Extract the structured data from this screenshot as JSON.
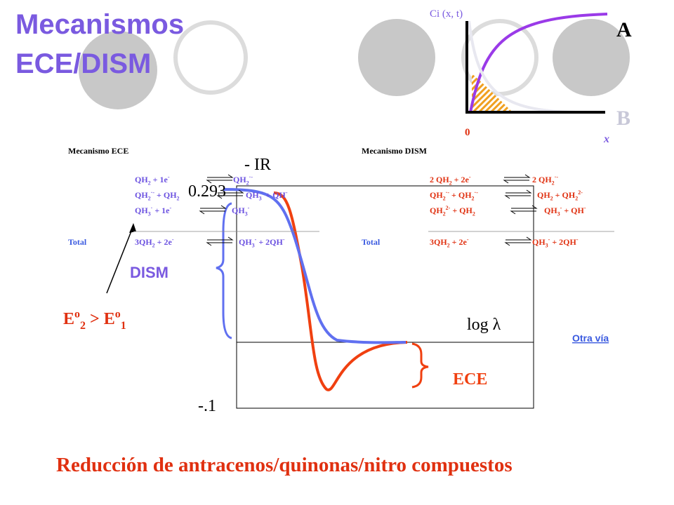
{
  "header": {
    "title_lines": [
      "Mecanismos",
      "ECE/DISM"
    ]
  },
  "inset": {
    "y_label": "Ci (x, t)",
    "curve_a": "A",
    "curve_b": "B",
    "origin": "0",
    "x_label": "x"
  },
  "ece": {
    "title": "Mecanismo ECE",
    "steps": [
      {
        "left": [
          [
            "QH",
            "n"
          ],
          [
            "2",
            "sub"
          ],
          [
            " + 1e",
            "n"
          ],
          [
            "-",
            "sup"
          ]
        ],
        "right": [
          [
            "QH",
            "n"
          ],
          [
            "2",
            "sub"
          ],
          [
            "·-",
            "sup"
          ]
        ]
      },
      {
        "left": [
          [
            "QH",
            "n"
          ],
          [
            "2",
            "sub"
          ],
          [
            "·-",
            "sup"
          ],
          [
            " + QH",
            "n"
          ],
          [
            "2",
            "sub"
          ]
        ],
        "right": [
          [
            "QH",
            "n"
          ],
          [
            "3",
            "sub"
          ],
          [
            "·",
            "sup"
          ],
          [
            " + QH",
            "n"
          ],
          [
            "-",
            "sup"
          ]
        ]
      },
      {
        "left": [
          [
            "QH",
            "n"
          ],
          [
            "3",
            "sub"
          ],
          [
            "·",
            "sup"
          ],
          [
            " + 1e",
            "n"
          ],
          [
            "-",
            "sup"
          ]
        ],
        "right": [
          [
            "QH",
            "n"
          ],
          [
            "3",
            "sub"
          ],
          [
            "-",
            "sup"
          ]
        ]
      }
    ],
    "total_label": "Total",
    "total": {
      "left": [
        [
          "3QH",
          "n"
        ],
        [
          "2",
          "sub"
        ],
        [
          " + 2e",
          "n"
        ],
        [
          "-",
          "sup"
        ]
      ],
      "right": [
        [
          "QH",
          "n"
        ],
        [
          "3",
          "sub"
        ],
        [
          "-",
          "sup"
        ],
        [
          "  + 2QH",
          "n"
        ],
        [
          "-",
          "sup"
        ]
      ]
    }
  },
  "dism": {
    "title": "Mecanismo DISM",
    "steps": [
      {
        "left": [
          [
            "2 QH",
            "n"
          ],
          [
            "2",
            "sub"
          ],
          [
            " + 2e",
            "n"
          ],
          [
            "-",
            "sup"
          ]
        ],
        "right": [
          [
            "2 QH",
            "n"
          ],
          [
            "2",
            "sub"
          ],
          [
            "·-",
            "sup"
          ]
        ]
      },
      {
        "left": [
          [
            "QH",
            "n"
          ],
          [
            "2",
            "sub"
          ],
          [
            "·-",
            "sup"
          ],
          [
            " + QH",
            "n"
          ],
          [
            "2",
            "sub"
          ],
          [
            "·-",
            "sup"
          ]
        ],
        "right": [
          [
            "QH",
            "n"
          ],
          [
            "2",
            "sub"
          ],
          [
            " + QH",
            "n"
          ],
          [
            "2",
            "sub"
          ],
          [
            "2-",
            "sup"
          ]
        ]
      },
      {
        "left": [
          [
            "QH",
            "n"
          ],
          [
            "2",
            "sub"
          ],
          [
            "2-",
            "sup"
          ],
          [
            " + QH",
            "n"
          ],
          [
            "2",
            "sub"
          ]
        ],
        "right": [
          [
            "QH",
            "n"
          ],
          [
            "3",
            "sub"
          ],
          [
            "-",
            "sup"
          ],
          [
            " + QH",
            "n"
          ],
          [
            "-",
            "sup"
          ]
        ]
      }
    ],
    "total_label": "Total",
    "total": {
      "left": [
        [
          "3QH",
          "n"
        ],
        [
          "2",
          "sub"
        ],
        [
          " + 2e",
          "n"
        ],
        [
          "-",
          "sup"
        ]
      ],
      "right": [
        [
          "QH",
          "n"
        ],
        [
          "3",
          "sub"
        ],
        [
          "-",
          "sup"
        ],
        [
          " + 2QH",
          "n"
        ],
        [
          "-",
          "sup"
        ]
      ]
    }
  },
  "graph": {
    "top_label": "- IR",
    "y_high": "0.293",
    "y_low": "-.1",
    "x_label": "log λ",
    "dism_label": "DISM",
    "ece_label": "ECE"
  },
  "condition": [
    [
      "E",
      "n"
    ],
    [
      "o",
      "sup"
    ],
    [
      "2",
      "sub"
    ],
    [
      " > E",
      "n"
    ],
    [
      "o",
      "sup"
    ],
    [
      "1",
      "sub"
    ]
  ],
  "link": "Otra vía",
  "footer": "Reducción de antracenos/quinonas/nitro compuestos"
}
